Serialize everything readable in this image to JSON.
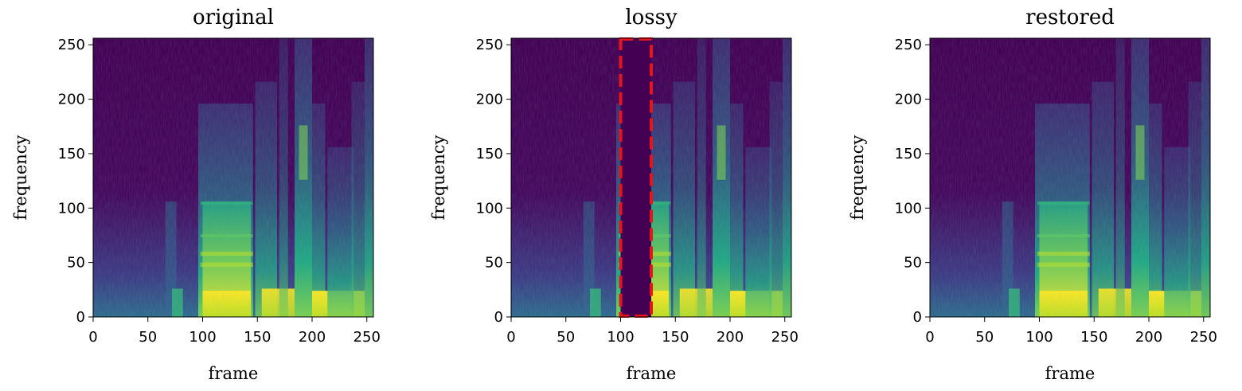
{
  "chart_data": [
    {
      "type": "heatmap",
      "title": "original",
      "xlabel": "frame",
      "ylabel": "frequency",
      "xlim": [
        0,
        256
      ],
      "ylim": [
        0,
        256
      ],
      "xticks": [
        0,
        50,
        100,
        150,
        200,
        250
      ],
      "yticks": [
        0,
        50,
        100,
        150,
        200,
        250
      ],
      "colormap": "viridis",
      "masked_region": null
    },
    {
      "type": "heatmap",
      "title": "lossy",
      "xlabel": "frame",
      "ylabel": "frequency",
      "xlim": [
        0,
        256
      ],
      "ylim": [
        0,
        256
      ],
      "xticks": [
        0,
        50,
        100,
        150,
        200,
        250
      ],
      "yticks": [
        0,
        50,
        100,
        150,
        200,
        250
      ],
      "colormap": "viridis",
      "masked_region": {
        "x": [
          100,
          128
        ],
        "y": [
          0,
          256
        ],
        "outline_color": "#e8141c"
      }
    },
    {
      "type": "heatmap",
      "title": "restored",
      "xlabel": "frame",
      "ylabel": "frequency",
      "xlim": [
        0,
        256
      ],
      "ylim": [
        0,
        256
      ],
      "xticks": [
        0,
        50,
        100,
        150,
        200,
        250
      ],
      "yticks": [
        0,
        50,
        100,
        150,
        200,
        250
      ],
      "colormap": "viridis",
      "masked_region": null
    }
  ],
  "colors": {
    "viridis_low": "#440154",
    "viridis_mid": "#21918c",
    "viridis_high": "#fde725",
    "mask_outline": "#e8141c"
  }
}
